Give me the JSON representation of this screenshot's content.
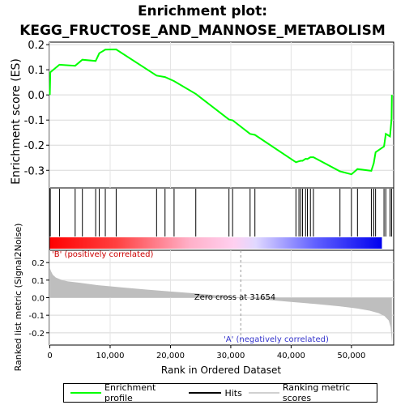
{
  "title_line1": "Enrichment plot:",
  "title_line2": "KEGG_FRUCTOSE_AND_MANNOSE_METABOLISM",
  "legend": {
    "profile": "Enrichment profile",
    "hits": "Hits",
    "scores": "Ranking metric scores"
  },
  "colors": {
    "profile": "#00ff00",
    "hits": "#000000",
    "metric_fill": "#bebebe",
    "positive": "#ff0000",
    "negative": "#0000ff"
  },
  "chart_data": {
    "type": "line",
    "es_panel": {
      "ylabel": "Enrichment score (ES)",
      "ylim": [
        -0.37,
        0.21
      ],
      "yticks": [
        0.2,
        0.1,
        0.0,
        -0.1,
        -0.2,
        -0.3
      ],
      "ytick_labels": [
        "0.2",
        "0.1",
        "0.0",
        "-0.1",
        "-0.2",
        "-0.3"
      ],
      "x": [
        0,
        80,
        1600,
        4200,
        5400,
        7600,
        8200,
        9200,
        11000,
        17700,
        19100,
        20600,
        24200,
        29700,
        30300,
        33200,
        34000,
        40800,
        41300,
        41600,
        41900,
        42400,
        42700,
        43200,
        43700,
        48100,
        50000,
        51000,
        53300,
        53700,
        54000,
        55400,
        55700,
        56400,
        56650,
        56700
      ],
      "y": [
        0.0,
        0.09,
        0.12,
        0.116,
        0.14,
        0.135,
        0.166,
        0.18,
        0.181,
        0.077,
        0.071,
        0.055,
        0.004,
        -0.098,
        -0.101,
        -0.155,
        -0.159,
        -0.268,
        -0.264,
        -0.262,
        -0.262,
        -0.254,
        -0.255,
        -0.248,
        -0.248,
        -0.304,
        -0.316,
        -0.295,
        -0.302,
        -0.272,
        -0.228,
        -0.205,
        -0.155,
        -0.165,
        -0.095,
        0.0
      ]
    },
    "hits": [
      80,
      1600,
      4200,
      5400,
      7600,
      8200,
      9200,
      11000,
      17700,
      19100,
      20600,
      24200,
      29700,
      30300,
      33200,
      34000,
      40800,
      41300,
      41600,
      41900,
      42400,
      42700,
      43200,
      43700,
      48100,
      50000,
      51000,
      53300,
      53700,
      54000,
      55400,
      55700,
      56400,
      56650
    ],
    "metric_panel": {
      "ylabel": "Ranked list metric (Signal2Noise)",
      "ylim": [
        -0.27,
        0.27
      ],
      "yticks": [
        0.2,
        0.1,
        0.0,
        -0.1,
        -0.2
      ],
      "ytick_labels": [
        "0.2",
        "0.1",
        "0.0",
        "-0.1",
        "-0.2"
      ],
      "x": [
        0,
        200,
        500,
        1000,
        2000,
        3000,
        5000,
        8000,
        12000,
        16000,
        20000,
        24000,
        28000,
        31654,
        36000,
        40000,
        44000,
        48000,
        51000,
        53000,
        54500,
        55500,
        56200,
        56500,
        56700
      ],
      "y": [
        0.17,
        0.15,
        0.13,
        0.115,
        0.1,
        0.093,
        0.085,
        0.071,
        0.058,
        0.046,
        0.035,
        0.025,
        0.012,
        0.0,
        -0.012,
        -0.024,
        -0.036,
        -0.049,
        -0.062,
        -0.074,
        -0.088,
        -0.105,
        -0.13,
        -0.17,
        -0.26
      ]
    },
    "zero_cross_label": "Zero cross at 31654",
    "zero_cross": 31654,
    "pos_label": "'B' (positively correlated)",
    "neg_label": "'A' (negatively correlated)",
    "xlabel": "Rank in Ordered Dataset",
    "xlim": [
      0,
      57000
    ],
    "xticks": [
      0,
      10000,
      20000,
      30000,
      40000,
      50000
    ],
    "xtick_labels": [
      "0",
      "10,000",
      "20,000",
      "30,000",
      "40,000",
      "50,000"
    ]
  }
}
